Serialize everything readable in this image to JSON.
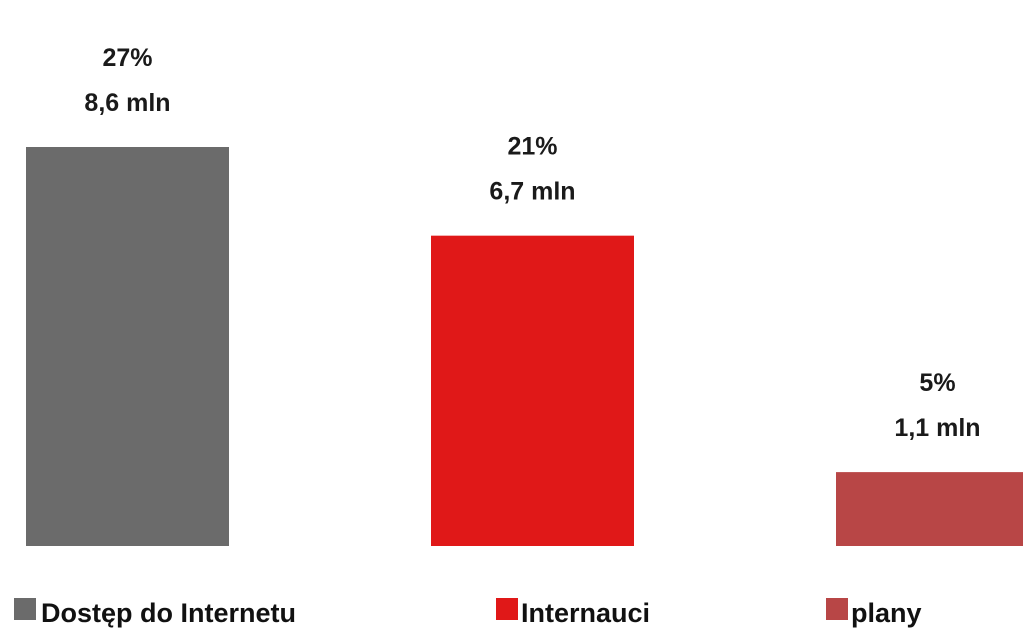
{
  "chart_data": {
    "type": "bar",
    "categories": [
      "Dostęp do Internetu",
      "Internauci",
      "plany"
    ],
    "values": [
      27,
      21,
      5
    ],
    "unit": "%",
    "data_labels": [
      {
        "percent": "27%",
        "count": "8,6 mln"
      },
      {
        "percent": "21%",
        "count": "6,7 mln"
      },
      {
        "percent": "5%",
        "count": "1,1 mln"
      }
    ],
    "colors": [
      "#6b6b6b",
      "#e01818",
      "#b84646"
    ],
    "ylim": [
      0,
      27
    ],
    "grid": false,
    "axes_visible": false,
    "legend_position": "bottom",
    "legend": [
      {
        "label": "Dostęp do Internetu",
        "color": "#6b6b6b"
      },
      {
        "label": "Internauci",
        "color": "#e01818"
      },
      {
        "label": "plany",
        "color": "#b84646"
      }
    ]
  }
}
